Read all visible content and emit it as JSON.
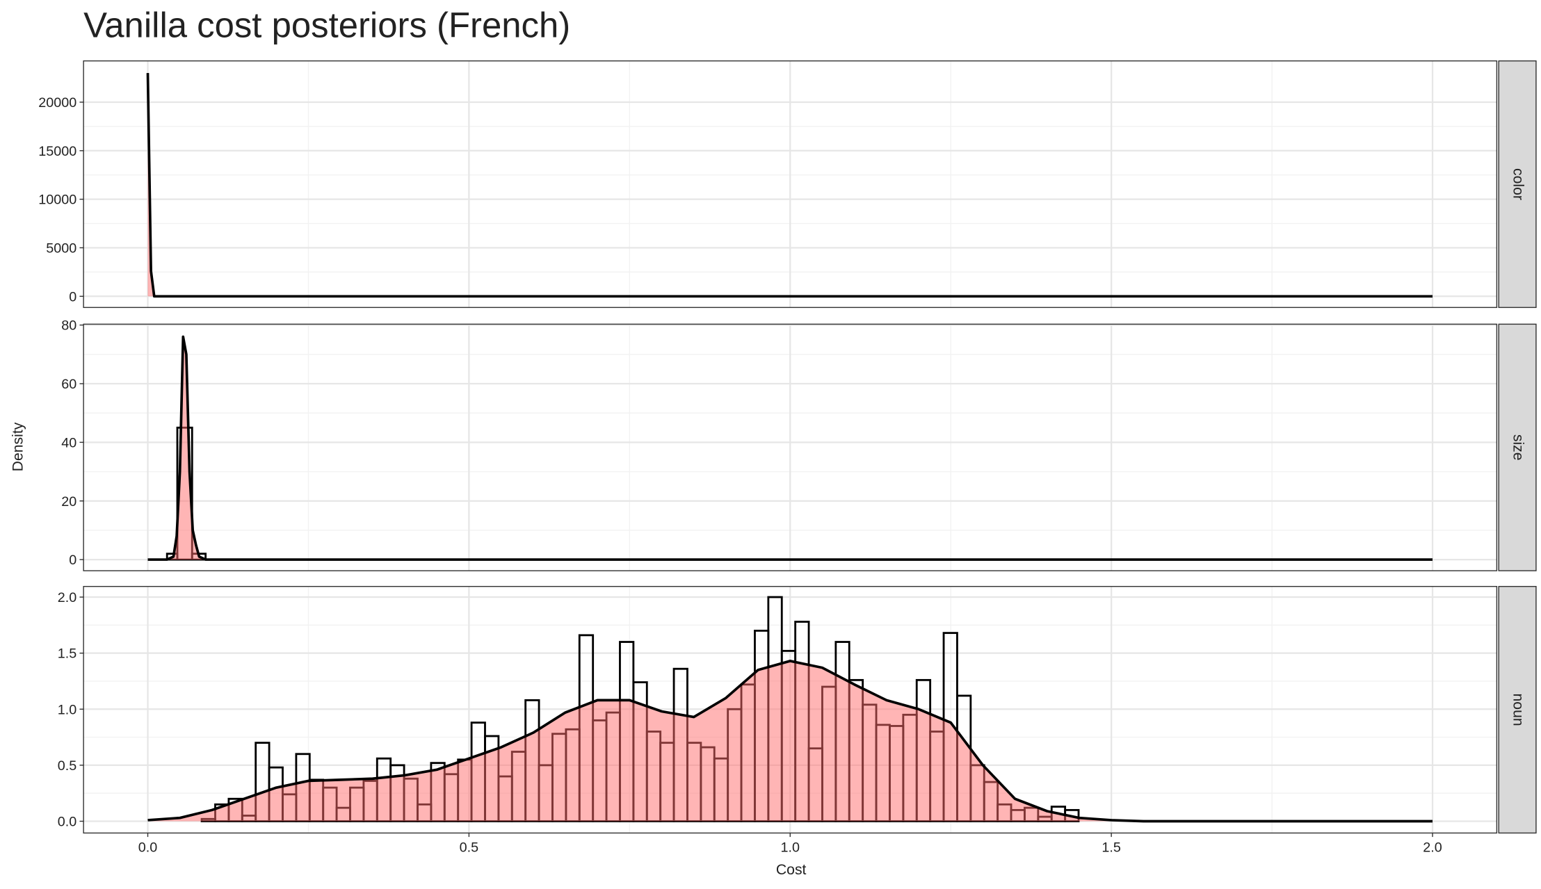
{
  "chart_data": {
    "type": "faceted-histogram-density",
    "title": "Vanilla cost posteriors (French)",
    "xlabel": "Cost",
    "ylabel": "Density",
    "xlim": [
      -0.1,
      2.1
    ],
    "xticks": [
      {
        "value": 0,
        "label": "0.0"
      },
      {
        "value": 0.5,
        "label": "0.5"
      },
      {
        "value": 1,
        "label": "1.0"
      },
      {
        "value": 1.5,
        "label": "1.5"
      },
      {
        "value": 2,
        "label": "2.0"
      }
    ],
    "grid": true,
    "hist_color": "#000000",
    "density_fill": "#ff6b6b",
    "density_line": "#000000",
    "facets": [
      {
        "label": "color",
        "ylim": [
          -1150,
          24250
        ],
        "yticks": [
          0,
          5000,
          10000,
          15000,
          20000
        ],
        "density": {
          "x": [
            0,
            0.005,
            0.01,
            2.0
          ],
          "y": [
            23000,
            2600,
            0,
            0
          ]
        }
      },
      {
        "label": "size",
        "ylim": [
          -3.8,
          80.3
        ],
        "yticks": [
          0,
          20,
          40,
          60,
          80
        ],
        "bins": [
          0.03,
          0.046,
          0.069,
          0.09
        ],
        "counts": [
          2,
          45,
          2
        ],
        "density": {
          "x": [
            0,
            0.03,
            0.04,
            0.045,
            0.05,
            0.055,
            0.06,
            0.065,
            0.07,
            0.075,
            0.08,
            0.09,
            2.0
          ],
          "y": [
            0,
            0,
            1,
            8,
            30,
            76,
            70,
            30,
            10,
            5,
            1,
            0,
            0
          ]
        }
      },
      {
        "label": "noun",
        "ylim": [
          -0.105,
          2.095
        ],
        "yticks": [
          {
            "value": 0,
            "label": "0.0"
          },
          {
            "value": 0.5,
            "label": "0.5"
          },
          {
            "value": 1,
            "label": "1.0"
          },
          {
            "value": 1.5,
            "label": "1.5"
          },
          {
            "value": 2,
            "label": "2.0"
          }
        ],
        "bins": [
          0.084,
          0.105,
          0.126,
          0.147,
          0.168,
          0.189,
          0.21,
          0.231,
          0.252,
          0.273,
          0.294,
          0.315,
          0.336,
          0.357,
          0.378,
          0.399,
          0.42,
          0.441,
          0.462,
          0.483,
          0.504,
          0.525,
          0.546,
          0.567,
          0.588,
          0.609,
          0.63,
          0.651,
          0.672,
          0.693,
          0.714,
          0.735,
          0.756,
          0.777,
          0.798,
          0.819,
          0.84,
          0.861,
          0.882,
          0.903,
          0.924,
          0.945,
          0.966,
          0.987,
          1.008,
          1.029,
          1.05,
          1.071,
          1.092,
          1.113,
          1.134,
          1.155,
          1.176,
          1.197,
          1.218,
          1.239,
          1.26,
          1.281,
          1.302,
          1.323,
          1.344,
          1.365,
          1.386,
          1.407,
          1.428,
          1.449
        ],
        "counts": [
          0.02,
          0.15,
          0.2,
          0.05,
          0.7,
          0.48,
          0.24,
          0.6,
          0.37,
          0.3,
          0.12,
          0.3,
          0.36,
          0.56,
          0.5,
          0.38,
          0.15,
          0.52,
          0.42,
          0.55,
          0.88,
          0.76,
          0.4,
          0.62,
          1.08,
          0.5,
          0.78,
          0.82,
          1.66,
          0.9,
          0.97,
          1.6,
          1.24,
          0.8,
          0.7,
          1.36,
          0.7,
          0.66,
          0.56,
          1.0,
          1.22,
          1.7,
          2.0,
          1.52,
          1.78,
          0.65,
          1.2,
          1.6,
          1.26,
          1.04,
          0.86,
          0.85,
          0.95,
          1.26,
          0.8,
          1.68,
          1.12,
          0.5,
          0.35,
          0.15,
          0.1,
          0.12,
          0.04,
          0.13,
          0.1
        ],
        "density": {
          "x": [
            0,
            0.05,
            0.1,
            0.15,
            0.2,
            0.25,
            0.3,
            0.35,
            0.4,
            0.45,
            0.5,
            0.55,
            0.6,
            0.65,
            0.7,
            0.75,
            0.8,
            0.85,
            0.9,
            0.95,
            1.0,
            1.05,
            1.1,
            1.15,
            1.2,
            1.25,
            1.3,
            1.35,
            1.4,
            1.45,
            1.5,
            1.55,
            1.6,
            1.65,
            1.7,
            1.75,
            1.8,
            1.85,
            1.9,
            1.95,
            2.0
          ],
          "y": [
            0.01,
            0.03,
            0.1,
            0.2,
            0.3,
            0.36,
            0.37,
            0.38,
            0.41,
            0.46,
            0.56,
            0.66,
            0.79,
            0.97,
            1.08,
            1.08,
            0.98,
            0.93,
            1.1,
            1.35,
            1.43,
            1.37,
            1.22,
            1.08,
            1.0,
            0.88,
            0.5,
            0.2,
            0.09,
            0.03,
            0.01,
            0,
            0,
            0,
            0,
            0,
            0,
            0,
            0,
            0,
            0
          ]
        }
      }
    ]
  }
}
